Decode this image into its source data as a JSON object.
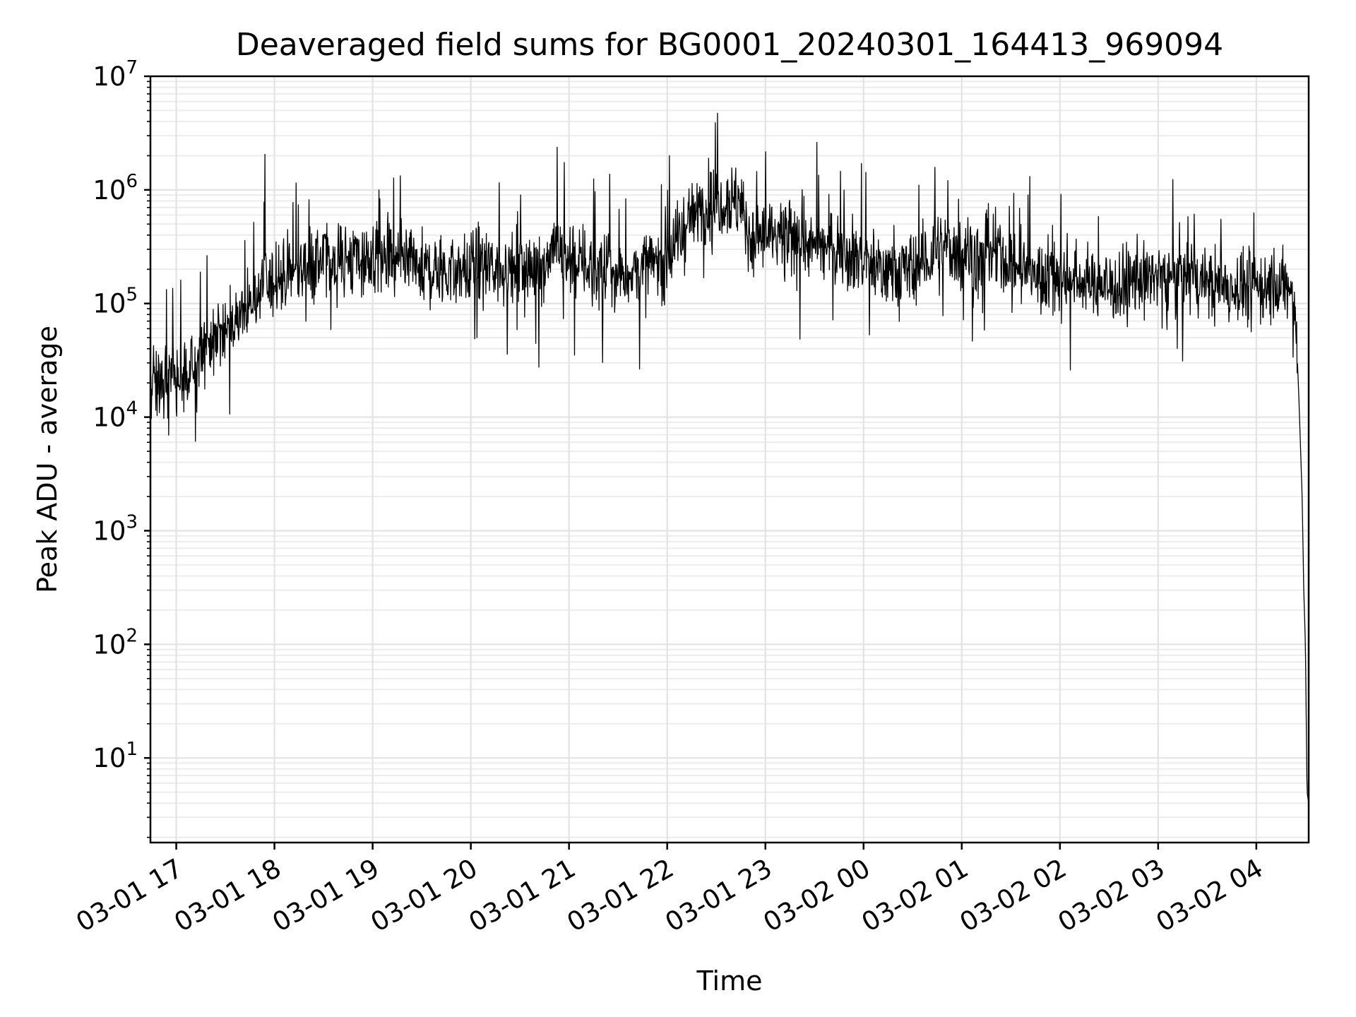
{
  "chart_data": {
    "type": "line",
    "title": "Deaveraged field sums for BG0001_20240301_164413_969094",
    "xlabel": "Time",
    "ylabel": "Peak ADU - average",
    "yscale": "log",
    "ylim": [
      1.8,
      10000000
    ],
    "xlim": [
      "2024-03-01 16:44:13",
      "2024-03-02 04:32:00"
    ],
    "grid": true,
    "grid_minor": true,
    "line_color": "#000000",
    "x_ticks": [
      {
        "value": "2024-03-01 17:00",
        "label": "03-01 17"
      },
      {
        "value": "2024-03-01 18:00",
        "label": "03-01 18"
      },
      {
        "value": "2024-03-01 19:00",
        "label": "03-01 19"
      },
      {
        "value": "2024-03-01 20:00",
        "label": "03-01 20"
      },
      {
        "value": "2024-03-01 21:00",
        "label": "03-01 21"
      },
      {
        "value": "2024-03-01 22:00",
        "label": "03-01 22"
      },
      {
        "value": "2024-03-01 23:00",
        "label": "03-01 23"
      },
      {
        "value": "2024-03-02 00:00",
        "label": "03-02 00"
      },
      {
        "value": "2024-03-02 01:00",
        "label": "03-02 01"
      },
      {
        "value": "2024-03-02 02:00",
        "label": "03-02 02"
      },
      {
        "value": "2024-03-02 03:00",
        "label": "03-02 03"
      },
      {
        "value": "2024-03-02 04:00",
        "label": "03-02 04"
      }
    ],
    "y_ticks": [
      {
        "value": 10,
        "base": "10",
        "exp": "1"
      },
      {
        "value": 100,
        "base": "10",
        "exp": "2"
      },
      {
        "value": 1000,
        "base": "10",
        "exp": "3"
      },
      {
        "value": 10000,
        "base": "10",
        "exp": "4"
      },
      {
        "value": 100000,
        "base": "10",
        "exp": "5"
      },
      {
        "value": 1000000,
        "base": "10",
        "exp": "6"
      },
      {
        "value": 10000000,
        "base": "10",
        "exp": "7"
      }
    ],
    "series": [
      {
        "points": [
          [
            "2024-03-01 16:44",
            15000
          ],
          [
            "2024-03-01 16:50",
            20000
          ],
          [
            "2024-03-01 16:55",
            25000
          ],
          [
            "2024-03-01 17:00",
            22000
          ],
          [
            "2024-03-01 17:05",
            20000
          ],
          [
            "2024-03-01 17:10",
            25000
          ],
          [
            "2024-03-01 17:15",
            35000
          ],
          [
            "2024-03-01 17:20",
            40000
          ],
          [
            "2024-03-01 17:25",
            50000
          ],
          [
            "2024-03-01 17:30",
            60000
          ],
          [
            "2024-03-01 17:35",
            70000
          ],
          [
            "2024-03-01 17:40",
            85000
          ],
          [
            "2024-03-01 17:45",
            100000
          ],
          [
            "2024-03-01 17:50",
            120000
          ],
          [
            "2024-03-01 17:55",
            140000
          ],
          [
            "2024-03-01 18:00",
            150000
          ],
          [
            "2024-03-01 18:10",
            180000
          ],
          [
            "2024-03-01 18:20",
            220000
          ],
          [
            "2024-03-01 18:30",
            240000
          ],
          [
            "2024-03-01 18:45",
            250000
          ],
          [
            "2024-03-01 19:00",
            240000
          ],
          [
            "2024-03-01 19:15",
            220000
          ],
          [
            "2024-03-01 19:30",
            200000
          ],
          [
            "2024-03-01 19:45",
            190000
          ],
          [
            "2024-03-01 20:00",
            200000
          ],
          [
            "2024-03-01 20:15",
            210000
          ],
          [
            "2024-03-01 20:30",
            190000
          ],
          [
            "2024-03-01 20:45",
            220000
          ],
          [
            "2024-03-01 20:50",
            350000
          ],
          [
            "2024-03-01 21:00",
            250000
          ],
          [
            "2024-03-01 21:15",
            200000
          ],
          [
            "2024-03-01 21:30",
            180000
          ],
          [
            "2024-03-01 21:45",
            200000
          ],
          [
            "2024-03-01 22:00",
            250000
          ],
          [
            "2024-03-01 22:10",
            450000
          ],
          [
            "2024-03-01 22:20",
            700000
          ],
          [
            "2024-03-01 22:30",
            800000
          ],
          [
            "2024-03-01 22:40",
            850000
          ],
          [
            "2024-03-01 22:45",
            700000
          ],
          [
            "2024-03-01 22:50",
            400000
          ],
          [
            "2024-03-01 23:00",
            380000
          ],
          [
            "2024-03-01 23:15",
            350000
          ],
          [
            "2024-03-01 23:30",
            320000
          ],
          [
            "2024-03-01 23:45",
            300000
          ],
          [
            "2024-03-02 00:00",
            250000
          ],
          [
            "2024-03-02 00:10",
            200000
          ],
          [
            "2024-03-02 00:20",
            180000
          ],
          [
            "2024-03-02 00:30",
            200000
          ],
          [
            "2024-03-02 00:45",
            280000
          ],
          [
            "2024-03-02 01:00",
            300000
          ],
          [
            "2024-03-02 01:10",
            250000
          ],
          [
            "2024-03-02 01:20",
            280000
          ],
          [
            "2024-03-02 01:30",
            220000
          ],
          [
            "2024-03-02 01:45",
            180000
          ],
          [
            "2024-03-02 02:00",
            170000
          ],
          [
            "2024-03-02 02:15",
            160000
          ],
          [
            "2024-03-02 02:30",
            140000
          ],
          [
            "2024-03-02 02:45",
            150000
          ],
          [
            "2024-03-02 03:00",
            180000
          ],
          [
            "2024-03-02 03:15",
            170000
          ],
          [
            "2024-03-02 03:30",
            150000
          ],
          [
            "2024-03-02 03:45",
            140000
          ],
          [
            "2024-03-02 04:00",
            140000
          ],
          [
            "2024-03-02 04:10",
            150000
          ],
          [
            "2024-03-02 04:20",
            130000
          ],
          [
            "2024-03-02 04:24",
            80000
          ],
          [
            "2024-03-02 04:26",
            15000
          ],
          [
            "2024-03-02 04:28",
            2000
          ],
          [
            "2024-03-02 04:29",
            300
          ],
          [
            "2024-03-02 04:30",
            100
          ],
          [
            "2024-03-02 04:31",
            5
          ],
          [
            "2024-03-02 04:32",
            4
          ]
        ]
      }
    ]
  }
}
